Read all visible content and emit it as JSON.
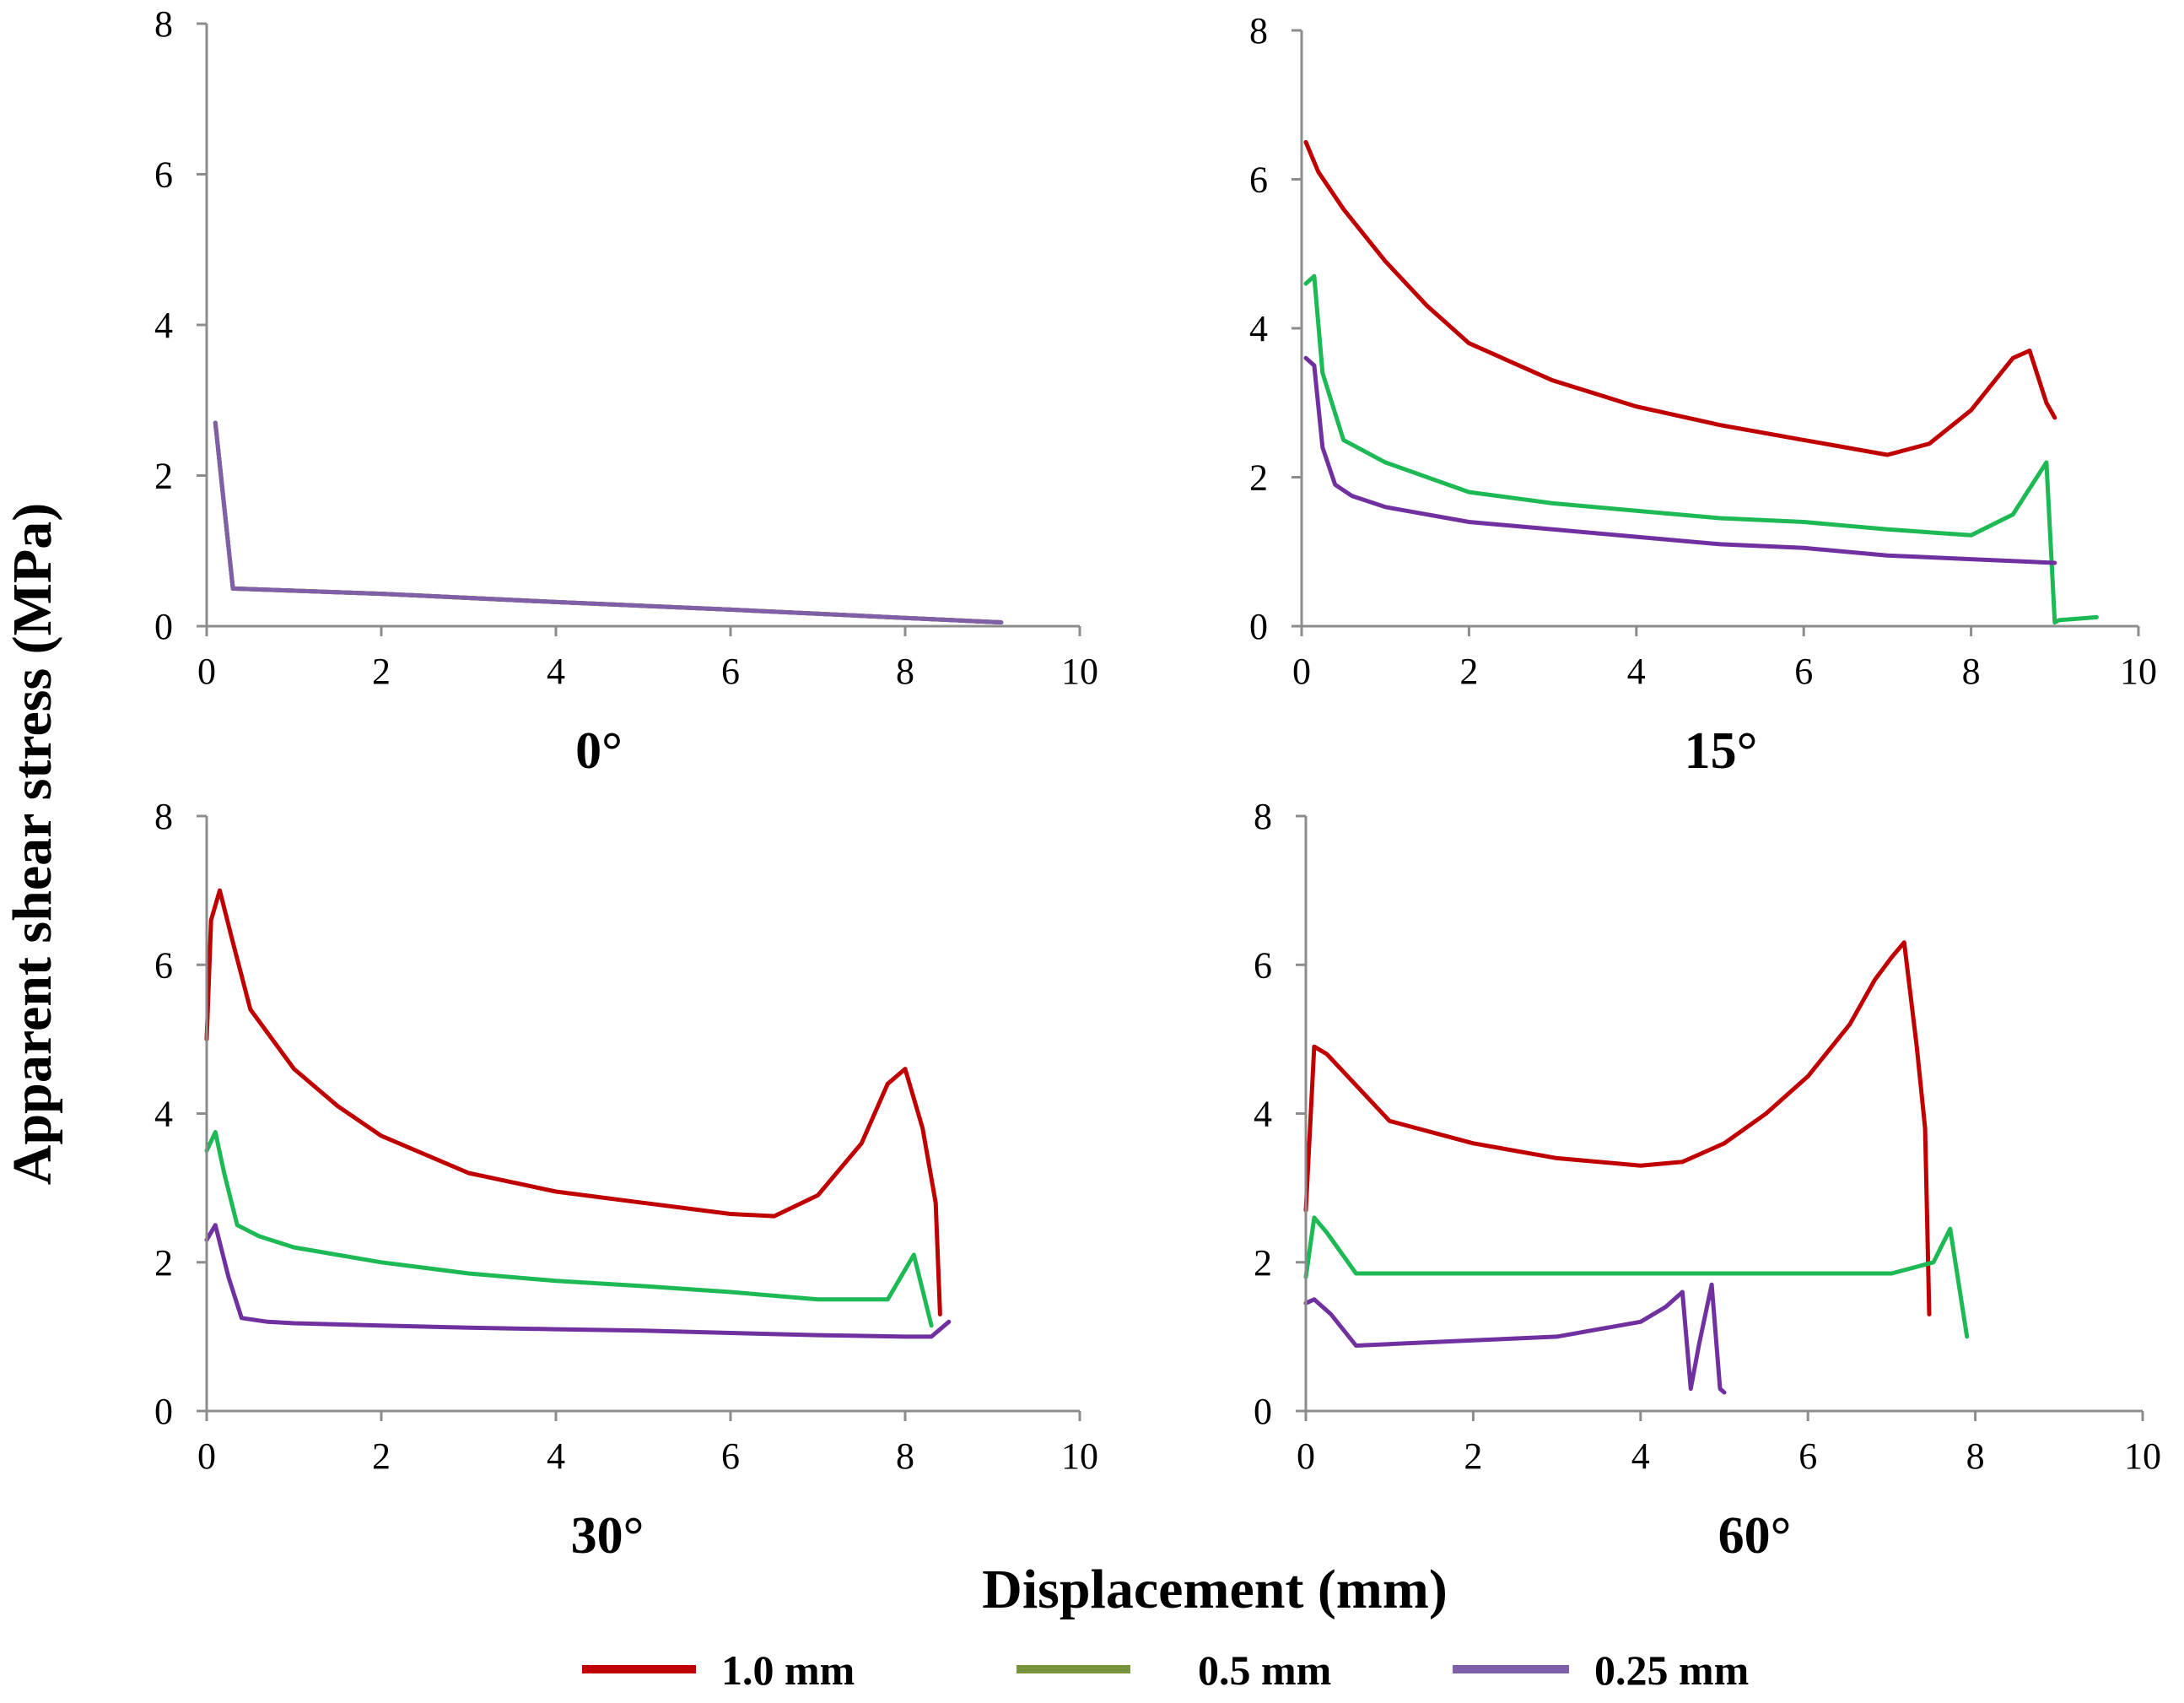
{
  "figure": {
    "ylabel": "Apparent shear stress (MPa)",
    "xlabel": "Displacement (mm)"
  },
  "legend": [
    {
      "label": "1.0 mm",
      "color": "#c00000"
    },
    {
      "label": "0.5 mm",
      "color": "#77933c"
    },
    {
      "label": "0.25 mm",
      "color": "#7f5fa8"
    }
  ],
  "chart_data": [
    {
      "type": "line",
      "title": "0°",
      "xlim": [
        0,
        10
      ],
      "ylim": [
        0,
        8
      ],
      "xticks": [
        0,
        2,
        4,
        6,
        8,
        10
      ],
      "yticks": [
        0,
        2,
        4,
        6,
        8
      ],
      "series": [
        {
          "name": "1.0 mm",
          "color": "#c00000",
          "x": [
            0.1,
            0.3,
            2.0,
            4.0,
            6.0,
            8.0,
            9.1
          ],
          "y": [
            2.7,
            0.5,
            0.43,
            0.32,
            0.22,
            0.11,
            0.05
          ]
        },
        {
          "name": "0.5 mm",
          "color": "#77933c",
          "x": [
            0.1,
            0.3,
            2.0,
            4.0,
            6.0,
            8.0,
            9.1
          ],
          "y": [
            2.7,
            0.5,
            0.43,
            0.32,
            0.22,
            0.11,
            0.05
          ]
        },
        {
          "name": "0.25 mm",
          "color": "#7f5fa8",
          "x": [
            0.1,
            0.3,
            2.0,
            4.0,
            6.0,
            8.0,
            9.1
          ],
          "y": [
            2.7,
            0.5,
            0.43,
            0.32,
            0.22,
            0.11,
            0.05
          ]
        }
      ]
    },
    {
      "type": "line",
      "title": "15°",
      "xlim": [
        0,
        10
      ],
      "ylim": [
        0,
        8
      ],
      "xticks": [
        0,
        2,
        4,
        6,
        8,
        10
      ],
      "yticks": [
        0,
        2,
        4,
        6,
        8
      ],
      "series": [
        {
          "name": "1.0 mm",
          "color": "#c00000",
          "x": [
            0.05,
            0.2,
            0.5,
            1.0,
            1.5,
            2.0,
            3.0,
            4.0,
            5.0,
            6.0,
            7.0,
            7.5,
            8.0,
            8.5,
            8.7,
            8.9,
            9.0
          ],
          "y": [
            6.5,
            6.1,
            5.6,
            4.9,
            4.3,
            3.8,
            3.3,
            2.95,
            2.7,
            2.5,
            2.3,
            2.45,
            2.9,
            3.6,
            3.7,
            3.0,
            2.8
          ]
        },
        {
          "name": "0.5 mm",
          "color": "#1db954",
          "x": [
            0.05,
            0.15,
            0.25,
            0.5,
            1.0,
            2.0,
            3.0,
            4.0,
            5.0,
            6.0,
            7.0,
            8.0,
            8.5,
            8.9,
            9.0,
            9.05,
            9.5
          ],
          "y": [
            4.6,
            4.7,
            3.4,
            2.5,
            2.2,
            1.8,
            1.65,
            1.55,
            1.45,
            1.4,
            1.3,
            1.22,
            1.5,
            2.2,
            0.05,
            0.08,
            0.12
          ]
        },
        {
          "name": "0.25 mm",
          "color": "#7030a0",
          "x": [
            0.05,
            0.15,
            0.25,
            0.4,
            0.6,
            1.0,
            2.0,
            3.0,
            4.0,
            5.0,
            6.0,
            7.0,
            8.0,
            9.0
          ],
          "y": [
            3.6,
            3.5,
            2.4,
            1.9,
            1.75,
            1.6,
            1.4,
            1.3,
            1.2,
            1.1,
            1.05,
            0.95,
            0.9,
            0.85
          ]
        }
      ]
    },
    {
      "type": "line",
      "title": "30°",
      "xlim": [
        0,
        10
      ],
      "ylim": [
        0,
        8
      ],
      "xticks": [
        0,
        2,
        4,
        6,
        8,
        10
      ],
      "yticks": [
        0,
        2,
        4,
        6,
        8
      ],
      "series": [
        {
          "name": "1.0 mm",
          "color": "#c00000",
          "x": [
            0.0,
            0.05,
            0.15,
            0.3,
            0.5,
            1.0,
            1.5,
            2.0,
            3.0,
            4.0,
            5.0,
            6.0,
            6.5,
            7.0,
            7.5,
            7.8,
            8.0,
            8.2,
            8.35,
            8.4
          ],
          "y": [
            5.0,
            6.6,
            7.0,
            6.3,
            5.4,
            4.6,
            4.1,
            3.7,
            3.2,
            2.95,
            2.8,
            2.65,
            2.62,
            2.9,
            3.6,
            4.4,
            4.6,
            3.8,
            2.8,
            1.3
          ]
        },
        {
          "name": "0.5 mm",
          "color": "#1db954",
          "x": [
            0.0,
            0.1,
            0.2,
            0.35,
            0.6,
            1.0,
            2.0,
            3.0,
            4.0,
            5.0,
            6.0,
            7.0,
            7.8,
            8.1,
            8.3
          ],
          "y": [
            3.5,
            3.75,
            3.2,
            2.5,
            2.35,
            2.2,
            2.0,
            1.85,
            1.75,
            1.68,
            1.6,
            1.5,
            1.5,
            2.1,
            1.15
          ]
        },
        {
          "name": "0.25 mm",
          "color": "#7030a0",
          "x": [
            0.0,
            0.1,
            0.25,
            0.4,
            0.7,
            1.0,
            2.0,
            3.0,
            4.0,
            5.0,
            6.0,
            7.0,
            8.0,
            8.3,
            8.5
          ],
          "y": [
            2.3,
            2.5,
            1.8,
            1.25,
            1.2,
            1.18,
            1.15,
            1.12,
            1.1,
            1.08,
            1.05,
            1.02,
            1.0,
            1.0,
            1.2
          ]
        }
      ]
    },
    {
      "type": "line",
      "title": "60°",
      "xlim": [
        0,
        10
      ],
      "ylim": [
        0,
        8
      ],
      "xticks": [
        0,
        2,
        4,
        6,
        8,
        10
      ],
      "yticks": [
        0,
        2,
        4,
        6,
        8
      ],
      "series": [
        {
          "name": "1.0 mm",
          "color": "#c00000",
          "x": [
            0.0,
            0.1,
            0.25,
            0.5,
            1.0,
            2.0,
            3.0,
            4.0,
            4.5,
            5.0,
            5.5,
            6.0,
            6.5,
            6.8,
            7.0,
            7.15,
            7.3,
            7.4,
            7.45
          ],
          "y": [
            2.7,
            4.9,
            4.8,
            4.5,
            3.9,
            3.6,
            3.4,
            3.3,
            3.35,
            3.6,
            4.0,
            4.5,
            5.2,
            5.8,
            6.1,
            6.3,
            4.9,
            3.8,
            1.3
          ]
        },
        {
          "name": "0.5 mm",
          "color": "#1db954",
          "x": [
            0.0,
            0.1,
            0.25,
            0.6,
            1.0,
            2.0,
            3.0,
            4.0,
            5.0,
            6.0,
            7.0,
            7.5,
            7.7,
            7.9
          ],
          "y": [
            1.8,
            2.6,
            2.4,
            1.85,
            1.85,
            1.85,
            1.85,
            1.85,
            1.85,
            1.85,
            1.85,
            2.0,
            2.45,
            1.0
          ]
        },
        {
          "name": "0.25 mm",
          "color": "#7030a0",
          "x": [
            0.0,
            0.1,
            0.3,
            0.6,
            1.0,
            2.0,
            3.0,
            3.5,
            4.0,
            4.3,
            4.5,
            4.6,
            4.7,
            4.85,
            4.95,
            5.0
          ],
          "y": [
            1.45,
            1.5,
            1.3,
            0.88,
            0.9,
            0.95,
            1.0,
            1.1,
            1.2,
            1.4,
            1.6,
            0.3,
            0.9,
            1.7,
            0.3,
            0.25
          ]
        }
      ]
    }
  ]
}
